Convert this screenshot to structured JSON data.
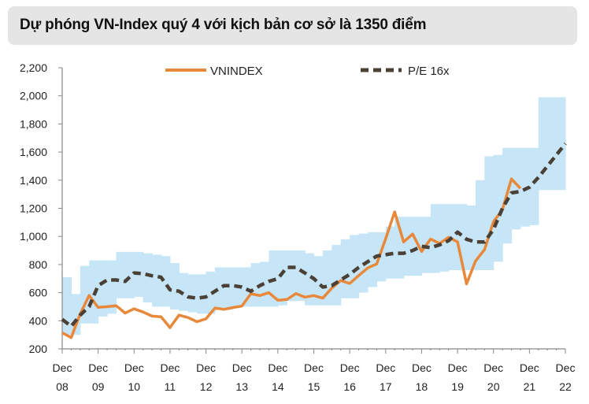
{
  "chart_data": {
    "type": "line",
    "title": "Dự phóng VN-Index quý 4 với kịch bản cơ sở là 1350 điểm",
    "xlabel": "",
    "ylabel": "",
    "ylim": [
      200,
      2200
    ],
    "yticks": [
      "200",
      "400",
      "600",
      "800",
      "1,000",
      "1,200",
      "1,400",
      "1,600",
      "1,800",
      "2,000",
      "2,200"
    ],
    "ytick_values": [
      200,
      400,
      600,
      800,
      1000,
      1200,
      1400,
      1600,
      1800,
      2000,
      2200
    ],
    "xticks": [
      [
        "Dec",
        "08"
      ],
      [
        "Dec",
        "09"
      ],
      [
        "Dec",
        "10"
      ],
      [
        "Dec",
        "11"
      ],
      [
        "Dec",
        "12"
      ],
      [
        "Dec",
        "13"
      ],
      [
        "Dec",
        "14"
      ],
      [
        "Dec",
        "15"
      ],
      [
        "Dec",
        "16"
      ],
      [
        "Dec",
        "17"
      ],
      [
        "Dec",
        "18"
      ],
      [
        "Dec",
        "19"
      ],
      [
        "Dec",
        "20"
      ],
      [
        "Dec",
        "21"
      ],
      [
        "Dec",
        "22"
      ]
    ],
    "x_unit": "quarter, starting Dec 08",
    "legend": "top",
    "grid": false,
    "series": [
      {
        "name": "VNINDEX",
        "color": "#e8883a",
        "style": "solid",
        "values": [
          315,
          280,
          448,
          580,
          495,
          500,
          507,
          455,
          485,
          462,
          433,
          428,
          351,
          440,
          423,
          393,
          414,
          491,
          481,
          494,
          505,
          592,
          579,
          600,
          546,
          551,
          593,
          568,
          579,
          561,
          632,
          686,
          665,
          722,
          776,
          804,
          984,
          1174,
          961,
          1017,
          893,
          981,
          950,
          994,
          961,
          662,
          825,
          906,
          1104,
          1191,
          1409,
          1342
        ]
      },
      {
        "name": "P/E 16x",
        "color": "#4a4036",
        "style": "dashed",
        "values": [
          410,
          360,
          440,
          500,
          650,
          690,
          690,
          680,
          740,
          735,
          720,
          710,
          620,
          610,
          570,
          560,
          570,
          610,
          650,
          650,
          640,
          610,
          650,
          680,
          700,
          780,
          780,
          740,
          700,
          640,
          650,
          690,
          730,
          780,
          820,
          860,
          870,
          880,
          880,
          900,
          930,
          920,
          940,
          970,
          1030,
          980,
          960,
          960,
          1050,
          1200,
          1310,
          1320,
          1350,
          1420,
          1500,
          1580,
          1660
        ]
      }
    ],
    "band": {
      "color": "#c6e6f8",
      "low": [
        300,
        300,
        380,
        380,
        430,
        450,
        560,
        560,
        570,
        530,
        500,
        500,
        480,
        470,
        460,
        450,
        450,
        480,
        480,
        500,
        500,
        500,
        500,
        500,
        510,
        540,
        540,
        510,
        510,
        510,
        510,
        560,
        560,
        600,
        640,
        680,
        700,
        700,
        720,
        720,
        740,
        740,
        750,
        760,
        760,
        760,
        760,
        760,
        820,
        950,
        1050,
        1070,
        1080,
        1330,
        1330,
        1330
      ],
      "high": [
        710,
        590,
        790,
        830,
        830,
        830,
        890,
        890,
        890,
        880,
        870,
        860,
        810,
        740,
        730,
        730,
        750,
        780,
        780,
        780,
        780,
        810,
        820,
        900,
        900,
        900,
        900,
        880,
        860,
        900,
        940,
        980,
        1010,
        1020,
        1030,
        1030,
        1070,
        1140,
        1140,
        1140,
        1140,
        1230,
        1230,
        1230,
        1230,
        1220,
        1400,
        1570,
        1580,
        1630,
        1630,
        1630,
        1630,
        1990,
        1990,
        1990
      ]
    }
  }
}
